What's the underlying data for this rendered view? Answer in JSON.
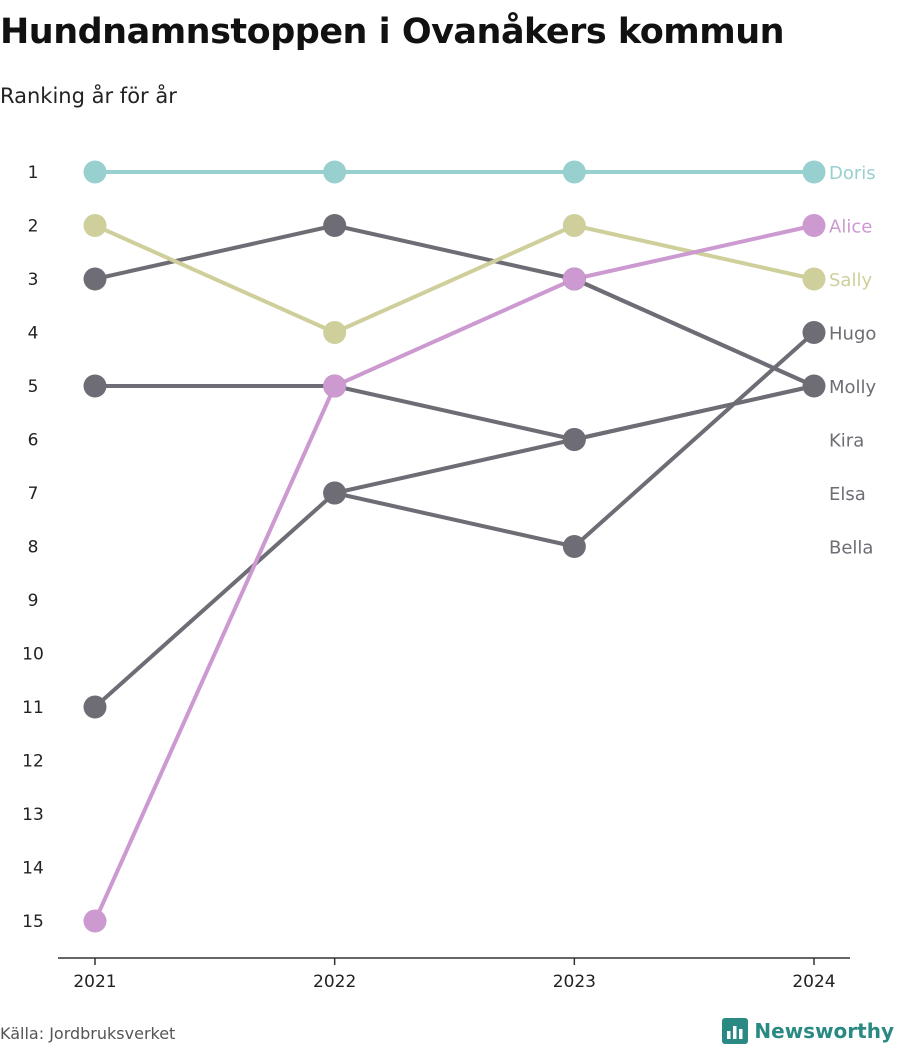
{
  "title": "Hundnamnstoppen i Ovanåkers kommun",
  "subtitle": "Ranking år för år",
  "source": "Källa: Jordbruksverket",
  "brand": {
    "name": "Newsworthy",
    "icon": "bar-chart-icon",
    "color": "#2a8a83"
  },
  "chart_data": {
    "type": "line",
    "title": "Hundnamnstoppen i Ovanåkers kommun",
    "subtitle": "Ranking år för år",
    "x": [
      "2021",
      "2022",
      "2023",
      "2024"
    ],
    "y_ticks": [
      1,
      2,
      3,
      4,
      5,
      6,
      7,
      8,
      9,
      10,
      11,
      12,
      13,
      14,
      15
    ],
    "ylim": [
      15,
      1
    ],
    "y_reversed": true,
    "grid": false,
    "legend": "inline-right",
    "series": [
      {
        "name": "Kira",
        "values": [
          3,
          2,
          3,
          5
        ],
        "color": "#6e6d75",
        "show_end_point": false
      },
      {
        "name": "Elsa",
        "values": [
          5,
          5,
          6,
          5
        ],
        "color": "#6e6d75",
        "show_end_point": false
      },
      {
        "name": "Bella",
        "values": [
          11,
          7,
          6,
          5
        ],
        "color": "#6e6d75",
        "show_end_point": false
      },
      {
        "name": "Hugo",
        "values": [
          null,
          7,
          8,
          4
        ],
        "color": "#6e6d75",
        "show_end_point": true
      },
      {
        "name": "Molly",
        "values": [
          null,
          null,
          3,
          5
        ],
        "color": "#6e6d75",
        "show_end_point": true
      },
      {
        "name": "Sally",
        "values": [
          2,
          4,
          2,
          3
        ],
        "color": "#cfcf9c",
        "show_end_point": true
      },
      {
        "name": "Alice",
        "values": [
          15,
          5,
          3,
          2
        ],
        "color": "#cc99d1",
        "show_end_point": true
      },
      {
        "name": "Doris",
        "values": [
          1,
          1,
          1,
          1
        ],
        "color": "#98cfcf",
        "show_end_point": true
      }
    ],
    "end_labels": [
      {
        "name": "Doris",
        "rank": 1,
        "color": "#98cfcf"
      },
      {
        "name": "Alice",
        "rank": 2,
        "color": "#cc99d1"
      },
      {
        "name": "Sally",
        "rank": 3,
        "color": "#cfcf9c"
      },
      {
        "name": "Hugo",
        "rank": 4,
        "color": "#6e6d75"
      },
      {
        "name": "Molly",
        "rank": 5,
        "color": "#6e6d75"
      },
      {
        "name": "Kira",
        "rank": 6,
        "color": "#6e6d75"
      },
      {
        "name": "Elsa",
        "rank": 7,
        "color": "#6e6d75"
      },
      {
        "name": "Bella",
        "rank": 8,
        "color": "#6e6d75"
      }
    ]
  }
}
